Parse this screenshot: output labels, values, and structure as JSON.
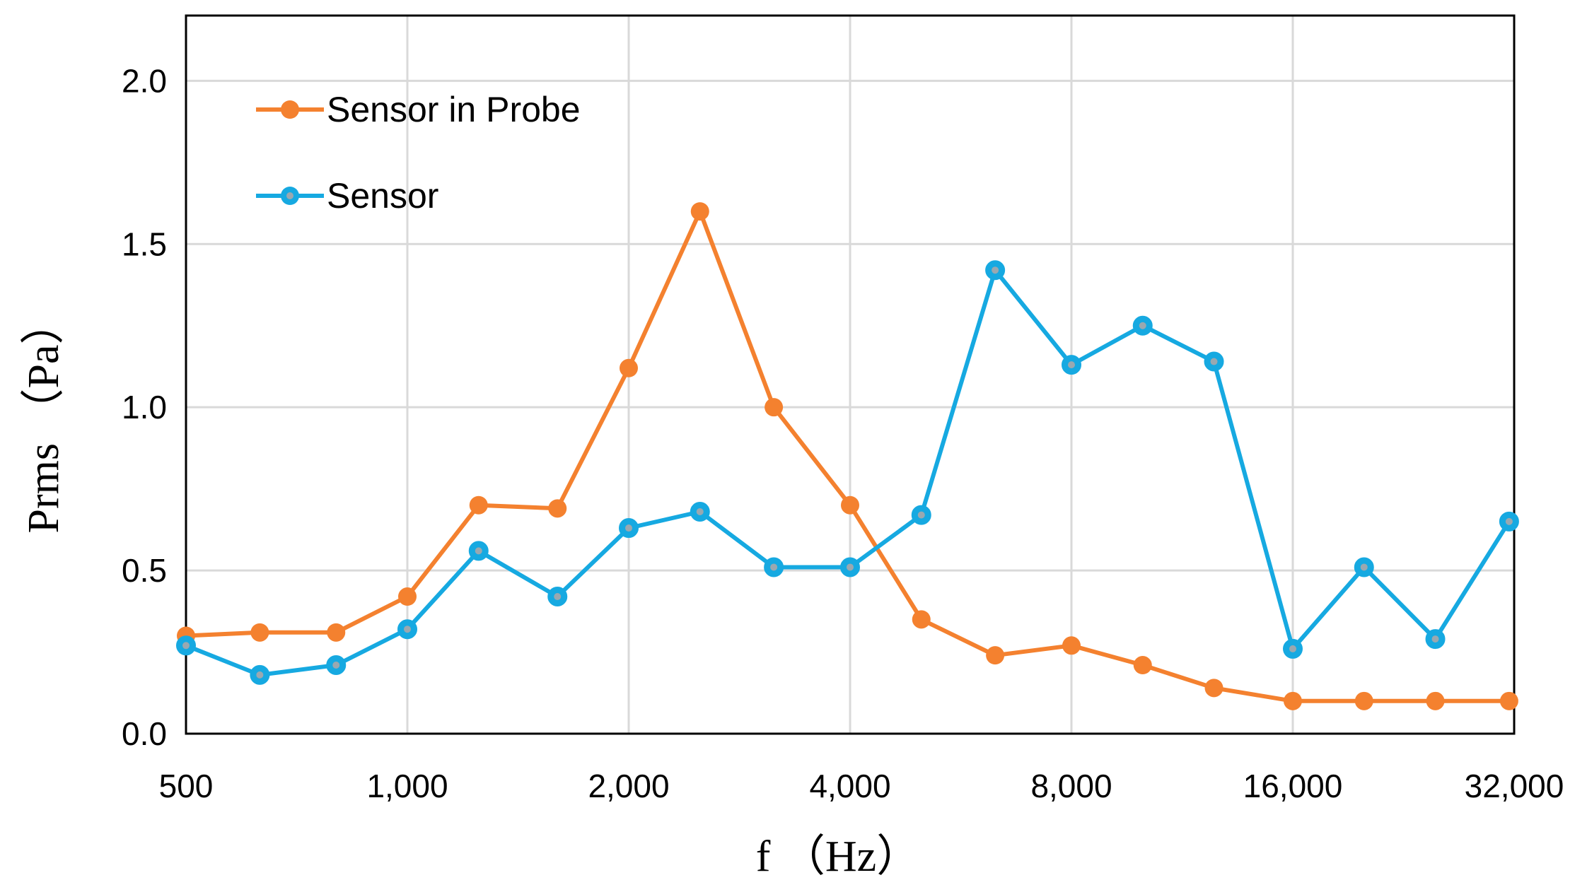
{
  "chart_data": {
    "type": "line",
    "xlabel": "f （Hz）",
    "ylabel": "Prms （Pa）",
    "x_scale": "log2",
    "xlim": [
      500,
      32000
    ],
    "ylim": [
      0,
      2.2
    ],
    "x_ticks": [
      500,
      1000,
      2000,
      4000,
      8000,
      16000,
      32000
    ],
    "x_tick_labels": [
      "500",
      "1,000",
      "2,000",
      "4,000",
      "8,000",
      "16,000",
      "32,000"
    ],
    "y_ticks": [
      0,
      0.5,
      1.0,
      1.5,
      2.0
    ],
    "y_tick_labels": [
      "0.0",
      "0.5",
      "1.0",
      "1.5",
      "2.0"
    ],
    "grid": true,
    "legend_position": "top-left",
    "x": [
      500,
      630,
      800,
      1000,
      1250,
      1600,
      2000,
      2500,
      3150,
      4000,
      5000,
      6300,
      8000,
      10000,
      12500,
      16000,
      20000,
      25000,
      31500
    ],
    "series": [
      {
        "name": "Sensor in Probe",
        "color": "#f4812f",
        "values": [
          0.3,
          0.31,
          0.31,
          0.42,
          0.7,
          0.69,
          1.12,
          1.6,
          1.0,
          0.7,
          0.35,
          0.24,
          0.27,
          0.21,
          0.14,
          0.1,
          0.1,
          0.1,
          0.1
        ]
      },
      {
        "name": "Sensor",
        "color": "#16a9e1",
        "values": [
          0.27,
          0.18,
          0.21,
          0.32,
          0.56,
          0.42,
          0.63,
          0.68,
          0.51,
          0.51,
          0.67,
          1.42,
          1.13,
          1.25,
          1.14,
          0.26,
          0.51,
          0.29,
          0.65
        ]
      }
    ]
  }
}
